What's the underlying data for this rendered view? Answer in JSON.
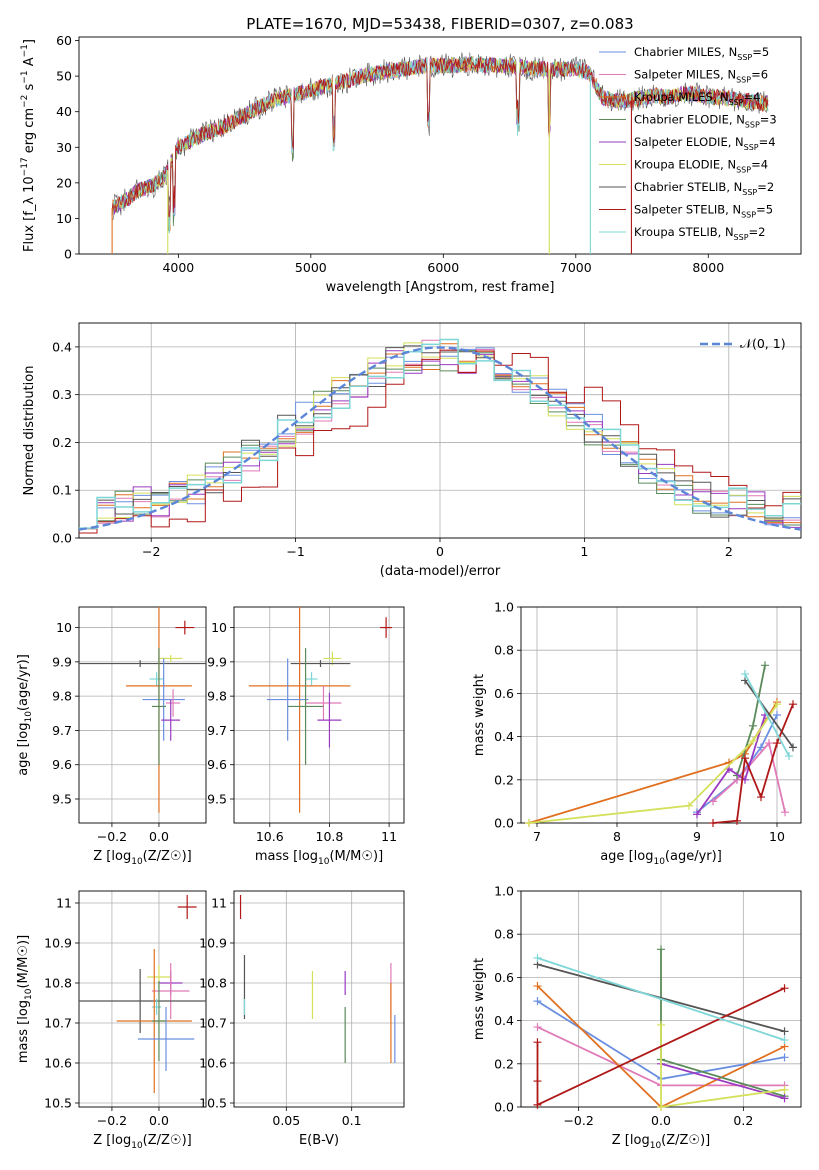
{
  "figure": {
    "title": "PLATE=1670, MJD=53438, FIBERID=0307, z=0.083"
  },
  "legend_entries": [
    {
      "label": "Chabrier MILES, N_SSP=5",
      "color": "#6a8fe0"
    },
    {
      "label": "Salpeter MILES, N_SSP=6",
      "color": "#e07ab8"
    },
    {
      "label": "Kroupa MILES, N_SSP=4",
      "color": "#e07020"
    },
    {
      "label": "Chabrier ELODIE, N_SSP=3",
      "color": "#5a8a5a"
    },
    {
      "label": "Salpeter ELODIE, N_SSP=4",
      "color": "#9a3ac0"
    },
    {
      "label": "Kroupa ELODIE, N_SSP=4",
      "color": "#d4e05a"
    },
    {
      "label": "Chabrier STELIB, N_SSP=2",
      "color": "#555555"
    },
    {
      "label": "Salpeter STELIB, N_SSP=5",
      "color": "#b01818"
    },
    {
      "label": "Kroupa STELIB, N_SSP=2",
      "color": "#7fd6d6"
    }
  ],
  "chart_data": [
    {
      "type": "line",
      "panel": "spectrum",
      "xlabel": "wavelength [Angstrom, rest frame]",
      "ylabel": "Flux [f_λ 10^-17 erg cm^-2 s^-1 A^-1]",
      "xlim": [
        3250,
        8700
      ],
      "ylim": [
        0,
        61
      ],
      "xticks": [
        4000,
        5000,
        6000,
        7000,
        8000
      ],
      "yticks": [
        0,
        10,
        20,
        30,
        40,
        50,
        60
      ],
      "grid": false,
      "legend": "right",
      "continuum_x": [
        3500,
        3600,
        3700,
        3800,
        3900,
        4000,
        4100,
        4200,
        4300,
        4400,
        4500,
        4600,
        4700,
        4800,
        4900,
        5000,
        5100,
        5200,
        5300,
        5400,
        5500,
        5600,
        5700,
        5800,
        5900,
        6000,
        6100,
        6200,
        6300,
        6400,
        6500,
        6600,
        6700,
        6800,
        6900,
        7000,
        7100,
        7200,
        7300,
        7400,
        7500,
        7600,
        7700,
        7800,
        7900,
        8000,
        8100,
        8200,
        8300,
        8400,
        8500
      ],
      "continuum_y": [
        13,
        15,
        18,
        19,
        22,
        30,
        32,
        34,
        35,
        37,
        39,
        41,
        43,
        44,
        45,
        46,
        47,
        48,
        49,
        50,
        51,
        51.5,
        52,
        52.5,
        53,
        53,
        53,
        53.5,
        53,
        53,
        53,
        52.5,
        52,
        52,
        52,
        52,
        51,
        44,
        43,
        43,
        44,
        44.5,
        44,
        45,
        45,
        44,
        44,
        43.5,
        43,
        42.5,
        42
      ],
      "absorption_features": [
        3934,
        3968,
        4861,
        5175,
        5890,
        6563,
        6800
      ],
      "drop_lines": [
        3500,
        3920,
        6800,
        7110,
        7420
      ]
    },
    {
      "type": "line",
      "panel": "residuals",
      "xlabel": "(data-model)/error",
      "ylabel": "Normed distribution",
      "xlim": [
        -2.5,
        2.5
      ],
      "ylim": [
        0,
        0.45
      ],
      "xticks": [
        -2,
        -1,
        0,
        1,
        2
      ],
      "yticks": [
        0.0,
        0.1,
        0.2,
        0.3,
        0.4
      ],
      "grid": true,
      "legend_label": "𝒩(0, 1)",
      "legend_position": "top-right",
      "histogram_bins": 40
    },
    {
      "type": "scatter",
      "panel": "age-vs-Z",
      "xlabel": "Z [log10(Z/Z☉)]",
      "ylabel": "age [log10(age/yr)]",
      "xlim": [
        -0.34,
        0.2
      ],
      "ylim": [
        9.43,
        10.06
      ],
      "xticks": [
        -0.2,
        0.0
      ],
      "yticks": [
        9.5,
        9.6,
        9.7,
        9.8,
        9.9,
        10.0
      ],
      "grid": true,
      "points": [
        {
          "x": 0.11,
          "y": 10.0,
          "xerr": 0.04,
          "yerr": 0.02,
          "color": "#b01818"
        },
        {
          "x": 0.05,
          "y": 9.91,
          "xerr": 0.05,
          "yerr": 0.01,
          "color": "#d4e05a"
        },
        {
          "x": -0.08,
          "y": 9.895,
          "xerr": 0.28,
          "yerr": 0.01,
          "color": "#555555"
        },
        {
          "x": -0.01,
          "y": 9.85,
          "xerr": 0.03,
          "yerr": 0.02,
          "color": "#7fd6d6"
        },
        {
          "x": 0.0,
          "y": 9.83,
          "xerr": 0.14,
          "yerr": 0.37,
          "color": "#e07020"
        },
        {
          "x": 0.02,
          "y": 9.79,
          "xerr": 0.09,
          "yerr": 0.12,
          "color": "#6a8fe0"
        },
        {
          "x": 0.06,
          "y": 9.78,
          "xerr": 0.03,
          "yerr": 0.04,
          "color": "#e07ab8"
        },
        {
          "x": 0.0,
          "y": 9.77,
          "xerr": 0.03,
          "yerr": 0.17,
          "color": "#5a8a5a"
        },
        {
          "x": 0.05,
          "y": 9.73,
          "xerr": 0.04,
          "yerr": 0.06,
          "color": "#9a3ac0"
        }
      ]
    },
    {
      "type": "scatter",
      "panel": "age-vs-mass",
      "xlabel": "mass [log10(M/M☉)]",
      "ylabel": "",
      "xlim": [
        10.48,
        11.05
      ],
      "ylim": [
        9.43,
        10.06
      ],
      "xticks": [
        10.6,
        10.8,
        11.0
      ],
      "yticks": [
        9.5,
        9.6,
        9.7,
        9.8,
        9.9,
        10.0
      ],
      "grid": true,
      "points": [
        {
          "x": 10.99,
          "y": 10.0,
          "xerr": 0.02,
          "yerr": 0.03,
          "color": "#b01818"
        },
        {
          "x": 10.81,
          "y": 9.91,
          "xerr": 0.03,
          "yerr": 0.02,
          "color": "#d4e05a"
        },
        {
          "x": 10.77,
          "y": 9.895,
          "xerr": 0.1,
          "yerr": 0.01,
          "color": "#555555"
        },
        {
          "x": 10.74,
          "y": 9.85,
          "xerr": 0.02,
          "yerr": 0.02,
          "color": "#7fd6d6"
        },
        {
          "x": 10.7,
          "y": 9.83,
          "xerr": 0.17,
          "yerr": 0.37,
          "color": "#e07020"
        },
        {
          "x": 10.66,
          "y": 9.79,
          "xerr": 0.07,
          "yerr": 0.12,
          "color": "#6a8fe0"
        },
        {
          "x": 10.78,
          "y": 9.78,
          "xerr": 0.06,
          "yerr": 0.05,
          "color": "#e07ab8"
        },
        {
          "x": 10.72,
          "y": 9.77,
          "xerr": 0.06,
          "yerr": 0.17,
          "color": "#5a8a5a"
        },
        {
          "x": 10.8,
          "y": 9.73,
          "xerr": 0.04,
          "yerr": 0.08,
          "color": "#9a3ac0"
        }
      ]
    },
    {
      "type": "line",
      "panel": "weight-vs-age",
      "xlabel": "age [log10(age/yr)]",
      "ylabel": "mass weight",
      "xlim": [
        6.8,
        10.3
      ],
      "ylim": [
        0,
        1.0
      ],
      "xticks": [
        7,
        8,
        9,
        10
      ],
      "yticks": [
        0.0,
        0.2,
        0.4,
        0.6,
        0.8,
        1.0
      ],
      "grid": true,
      "series": [
        {
          "color": "#6a8fe0",
          "x": [
            9.0,
            9.5,
            9.8,
            10.0
          ],
          "y": [
            0.05,
            0.2,
            0.35,
            0.5
          ]
        },
        {
          "color": "#e07ab8",
          "x": [
            9.2,
            9.5,
            9.9,
            10.1
          ],
          "y": [
            0.1,
            0.2,
            0.37,
            0.05
          ]
        },
        {
          "color": "#e07020",
          "x": [
            6.9,
            9.4,
            9.6,
            10.0
          ],
          "y": [
            0.0,
            0.28,
            0.32,
            0.56
          ]
        },
        {
          "color": "#5a8a5a",
          "x": [
            9.5,
            9.7,
            9.85
          ],
          "y": [
            0.22,
            0.45,
            0.73
          ]
        },
        {
          "color": "#9a3ac0",
          "x": [
            9.0,
            9.4,
            9.6,
            9.85
          ],
          "y": [
            0.04,
            0.25,
            0.2,
            0.5
          ]
        },
        {
          "color": "#d4e05a",
          "x": [
            6.9,
            8.9,
            9.7,
            10.0
          ],
          "y": [
            0.0,
            0.08,
            0.38,
            0.55
          ]
        },
        {
          "color": "#555555",
          "x": [
            9.6,
            10.2
          ],
          "y": [
            0.66,
            0.35
          ]
        },
        {
          "color": "#b01818",
          "x": [
            9.2,
            9.5,
            9.6,
            9.8,
            10.0,
            10.2
          ],
          "y": [
            0.0,
            0.01,
            0.3,
            0.12,
            0.37,
            0.55
          ]
        },
        {
          "color": "#7fd6d6",
          "x": [
            9.6,
            10.15
          ],
          "y": [
            0.69,
            0.31
          ]
        }
      ]
    },
    {
      "type": "scatter",
      "panel": "mass-vs-Z",
      "xlabel": "Z [log10(Z/Z☉)]",
      "ylabel": "mass [log10(M/M☉)]",
      "xlim": [
        -0.34,
        0.2
      ],
      "ylim": [
        10.49,
        11.03
      ],
      "xticks": [
        -0.2,
        0.0
      ],
      "yticks": [
        10.5,
        10.6,
        10.7,
        10.8,
        10.9,
        11.0
      ],
      "grid": true,
      "points": [
        {
          "x": 0.12,
          "y": 10.99,
          "xerr": 0.04,
          "yerr": 0.03,
          "color": "#b01818"
        },
        {
          "x": 0.0,
          "y": 10.815,
          "xerr": 0.05,
          "yerr": 0.03,
          "color": "#d4e05a"
        },
        {
          "x": 0.05,
          "y": 10.8,
          "xerr": 0.05,
          "yerr": 0.03,
          "color": "#9a3ac0"
        },
        {
          "x": 0.05,
          "y": 10.78,
          "xerr": 0.08,
          "yerr": 0.07,
          "color": "#e07ab8"
        },
        {
          "x": -0.08,
          "y": 10.755,
          "xerr": 0.28,
          "yerr": 0.08,
          "color": "#555555"
        },
        {
          "x": -0.01,
          "y": 10.74,
          "xerr": 0.02,
          "yerr": 0.02,
          "color": "#7fd6d6"
        },
        {
          "x": -0.02,
          "y": 10.705,
          "xerr": 0.16,
          "yerr": 0.18,
          "color": "#e07020"
        },
        {
          "x": 0.0,
          "y": 10.705,
          "xerr": 0.03,
          "yerr": 0.1,
          "color": "#5a8a5a"
        },
        {
          "x": 0.03,
          "y": 10.66,
          "xerr": 0.12,
          "yerr": 0.08,
          "color": "#6a8fe0"
        }
      ]
    },
    {
      "type": "scatter",
      "panel": "mass-vs-EBV",
      "xlabel": "E(B-V)",
      "ylabel": "",
      "xlim": [
        0.01,
        0.14
      ],
      "ylim": [
        10.49,
        11.03
      ],
      "xticks": [
        0.05,
        0.1
      ],
      "yticks": [
        10.5,
        10.6,
        10.7,
        10.8,
        10.9,
        11.0
      ],
      "grid": true,
      "points": [
        {
          "x": 0.015,
          "y": 10.99,
          "xerr": 0.0,
          "yerr": 0.03,
          "color": "#b01818"
        },
        {
          "x": 0.018,
          "y": 10.79,
          "xerr": 0.0,
          "yerr": 0.08,
          "color": "#555555"
        },
        {
          "x": 0.018,
          "y": 10.74,
          "xerr": 0.0,
          "yerr": 0.02,
          "color": "#7fd6d6"
        },
        {
          "x": 0.07,
          "y": 10.77,
          "xerr": 0.0,
          "yerr": 0.06,
          "color": "#d4e05a"
        },
        {
          "x": 0.095,
          "y": 10.8,
          "xerr": 0.0,
          "yerr": 0.03,
          "color": "#9a3ac0"
        },
        {
          "x": 0.095,
          "y": 10.67,
          "xerr": 0.0,
          "yerr": 0.07,
          "color": "#5a8a5a"
        },
        {
          "x": 0.13,
          "y": 10.78,
          "xerr": 0.0,
          "yerr": 0.07,
          "color": "#e07ab8"
        },
        {
          "x": 0.13,
          "y": 10.7,
          "xerr": 0.0,
          "yerr": 0.1,
          "color": "#e07020"
        },
        {
          "x": 0.133,
          "y": 10.66,
          "xerr": 0.0,
          "yerr": 0.06,
          "color": "#6a8fe0"
        }
      ]
    },
    {
      "type": "line",
      "panel": "weight-vs-Z",
      "xlabel": "Z [log10(Z/Z☉)]",
      "ylabel": "mass weight",
      "xlim": [
        -0.34,
        0.34
      ],
      "ylim": [
        0,
        1.0
      ],
      "xticks": [
        -0.2,
        0.0,
        0.2
      ],
      "yticks": [
        0.0,
        0.2,
        0.4,
        0.6,
        0.8,
        1.0
      ],
      "grid": true,
      "series": [
        {
          "color": "#6a8fe0",
          "x": [
            -0.3,
            0.0,
            0.3
          ],
          "y": [
            0.49,
            0.13,
            0.23
          ]
        },
        {
          "color": "#e07ab8",
          "x": [
            -0.3,
            0.0,
            0.3
          ],
          "y": [
            0.37,
            0.1,
            0.1
          ]
        },
        {
          "color": "#e07020",
          "x": [
            -0.3,
            0.0,
            0.3
          ],
          "y": [
            0.56,
            0.0,
            0.28
          ]
        },
        {
          "color": "#5a8a5a",
          "x": [
            0.0,
            0.0,
            0.3
          ],
          "y": [
            0.73,
            0.22,
            0.05
          ]
        },
        {
          "color": "#9a3ac0",
          "x": [
            0.0,
            0.3
          ],
          "y": [
            0.2,
            0.04
          ]
        },
        {
          "color": "#d4e05a",
          "x": [
            0.0,
            0.0,
            0.3
          ],
          "y": [
            0.38,
            0.0,
            0.08
          ]
        },
        {
          "color": "#555555",
          "x": [
            -0.3,
            0.3
          ],
          "y": [
            0.66,
            0.35
          ]
        },
        {
          "color": "#b01818",
          "x": [
            -0.3,
            -0.3,
            -0.3,
            0.3
          ],
          "y": [
            0.3,
            0.12,
            0.01,
            0.55
          ]
        },
        {
          "color": "#7fd6d6",
          "x": [
            -0.3,
            0.3
          ],
          "y": [
            0.69,
            0.31
          ]
        }
      ]
    }
  ]
}
